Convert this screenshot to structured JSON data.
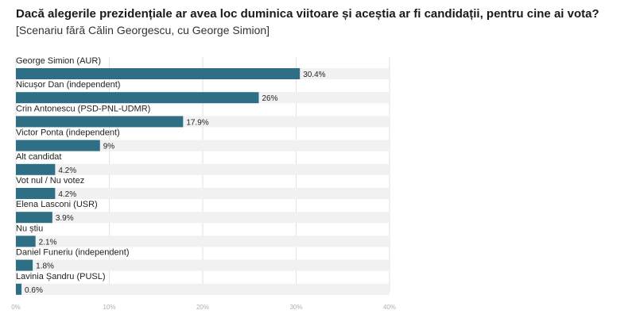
{
  "title": "Dacă alegerile prezidențiale ar avea loc duminica viitoare și aceștia ar fi candidații, pentru cine ai vota?",
  "subtitle": "[Scenariu fără Călin Georgescu, cu George Simion]",
  "colors": {
    "bar": "#2f6f86",
    "track": "#f1f1f1",
    "grid": "#e2e2e2",
    "tick": "#b0b0b0"
  },
  "chart_data": {
    "type": "bar",
    "orientation": "horizontal",
    "categories": [
      "George Simion (AUR)",
      "Nicușor Dan (independent)",
      "Crin Antonescu (PSD-PNL-UDMR)",
      "Victor Ponta (independent)",
      "Alt candidat",
      "Vot nul / Nu votez",
      "Elena Lasconi (USR)",
      "Nu știu",
      "Daniel Funeriu (independent)",
      "Lavinia Șandru (PUSL)"
    ],
    "values": [
      30.4,
      26,
      17.9,
      9,
      4.2,
      4.2,
      3.9,
      2.1,
      1.8,
      0.6
    ],
    "value_labels": [
      "30.4%",
      "26%",
      "17.9%",
      "9%",
      "4.2%",
      "4.2%",
      "3.9%",
      "2.1%",
      "1.8%",
      "0.6%"
    ],
    "xlim": [
      0,
      40
    ],
    "ticks": [
      0,
      10,
      20,
      30,
      40
    ],
    "tick_labels": [
      "0%",
      "10%",
      "20%",
      "30%",
      "40%"
    ],
    "grid": true
  }
}
